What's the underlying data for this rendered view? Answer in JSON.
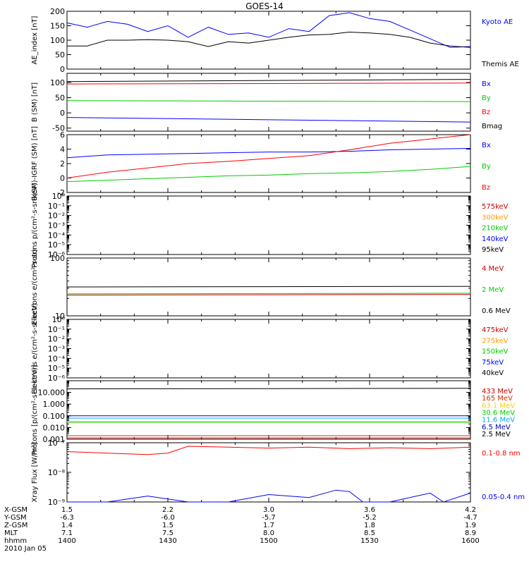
{
  "title": "GOES-14",
  "chart_data": [
    {
      "type": "line",
      "ylabel": "AE_index [nT]",
      "ylim": [
        0,
        200
      ],
      "scale": "linear",
      "ticks": [
        "0",
        "50",
        "100",
        "150",
        "200"
      ],
      "tick_values": [
        0,
        50,
        100,
        150,
        200
      ],
      "series": [
        {
          "name": "Kyoto AE",
          "color": "#0000ff",
          "x": [
            0,
            3,
            6,
            9,
            12,
            15,
            18,
            21,
            24,
            27,
            30,
            33,
            36,
            39,
            42,
            45,
            48,
            51,
            54,
            57,
            60
          ],
          "values": [
            160,
            145,
            165,
            155,
            130,
            150,
            110,
            145,
            120,
            125,
            110,
            140,
            130,
            185,
            195,
            175,
            165,
            135,
            105,
            75,
            78
          ]
        },
        {
          "name": "Themis AE",
          "color": "#000000",
          "x": [
            0,
            3,
            6,
            9,
            12,
            15,
            18,
            21,
            24,
            27,
            30,
            33,
            36,
            39,
            42,
            45,
            48,
            51,
            54,
            57,
            60
          ],
          "values": [
            80,
            80,
            100,
            100,
            102,
            100,
            95,
            78,
            95,
            90,
            100,
            110,
            118,
            120,
            128,
            125,
            120,
            110,
            90,
            80,
            75
          ]
        }
      ]
    },
    {
      "type": "line",
      "ylabel": "B (SM) [nT]",
      "ylim": [
        -60,
        130
      ],
      "scale": "linear",
      "ticks": [
        "-50",
        "0",
        "50",
        "100"
      ],
      "tick_values": [
        -50,
        0,
        50,
        100
      ],
      "series": [
        {
          "name": "Bx",
          "color": "#0000ff",
          "x": [
            0,
            60
          ],
          "values": [
            -15,
            -30
          ]
        },
        {
          "name": "By",
          "color": "#00cc00",
          "x": [
            0,
            60
          ],
          "values": [
            40,
            37
          ]
        },
        {
          "name": "Bz",
          "color": "#ff0000",
          "x": [
            0,
            60
          ],
          "values": [
            95,
            98
          ]
        },
        {
          "name": "Bmag",
          "color": "#000000",
          "x": [
            0,
            60
          ],
          "values": [
            103,
            110
          ]
        }
      ]
    },
    {
      "type": "line",
      "ylabel": "B(SM)-IGRF (SM) [nT]",
      "ylim": [
        -2,
        6
      ],
      "scale": "linear",
      "ticks": [
        "-2",
        "0",
        "2",
        "4",
        "6"
      ],
      "tick_values": [
        -2,
        0,
        2,
        4,
        6
      ],
      "series": [
        {
          "name": "Bx",
          "color": "#0000ff",
          "x": [
            0,
            6,
            12,
            18,
            24,
            30,
            36,
            42,
            48,
            54,
            60
          ],
          "values": [
            2.8,
            3.2,
            3.3,
            3.4,
            3.5,
            3.6,
            3.6,
            3.7,
            3.9,
            4.0,
            4.1
          ]
        },
        {
          "name": "By",
          "color": "#00cc00",
          "x": [
            0,
            6,
            12,
            18,
            24,
            30,
            36,
            42,
            48,
            54,
            60
          ],
          "values": [
            -0.5,
            -0.3,
            -0.1,
            0.1,
            0.3,
            0.4,
            0.6,
            0.7,
            0.9,
            1.2,
            1.6
          ]
        },
        {
          "name": "Bz",
          "color": "#ff0000",
          "x": [
            0,
            6,
            12,
            18,
            24,
            30,
            36,
            42,
            48,
            54,
            60
          ],
          "values": [
            0.0,
            0.8,
            1.4,
            2.0,
            2.3,
            2.7,
            3.1,
            3.9,
            4.8,
            5.4,
            6.0
          ]
        }
      ]
    },
    {
      "type": "line",
      "ylabel": "Protons p/(cm²-s-sr-keV)",
      "ylim": [
        -6,
        0
      ],
      "scale": "log",
      "ticks": [
        "10⁰",
        "10⁻¹",
        "10⁻²",
        "10⁻³",
        "10⁻⁴",
        "10⁻⁵",
        "10⁻⁶"
      ],
      "tick_values": [
        0,
        -1,
        -2,
        -3,
        -4,
        -5,
        -6
      ],
      "series": [
        {
          "name": "575keV",
          "color": "#cc0000",
          "x": [],
          "values": []
        },
        {
          "name": "300keV",
          "color": "#ff9900",
          "x": [],
          "values": []
        },
        {
          "name": "210keV",
          "color": "#00cc00",
          "x": [],
          "values": []
        },
        {
          "name": "140keV",
          "color": "#0000ff",
          "x": [],
          "values": []
        },
        {
          "name": "95keV",
          "color": "#000000",
          "x": [],
          "values": []
        }
      ]
    },
    {
      "type": "line",
      "ylabel": "Electrons e/(cm²-s-sr)",
      "ylim": [
        1,
        2
      ],
      "scale": "log",
      "ticks": [
        "100",
        "10"
      ],
      "tick_values": [
        2,
        1
      ],
      "series": [
        {
          "name": "4 MeV",
          "color": "#cc0000",
          "x": [
            0,
            60
          ],
          "values": [
            1.36,
            1.37
          ]
        },
        {
          "name": "2 MeV",
          "color": "#00cc00",
          "x": [
            0,
            60
          ],
          "values": [
            1.38,
            1.39
          ]
        },
        {
          "name": "0.6 MeV",
          "color": "#000000",
          "x": [
            0,
            60
          ],
          "values": [
            1.5,
            1.51
          ]
        }
      ]
    },
    {
      "type": "line",
      "ylabel": "Electrons e/(cm²-s-sr-keV)",
      "ylim": [
        -6,
        0
      ],
      "scale": "log",
      "ticks": [
        "10⁰",
        "10⁻¹",
        "10⁻²",
        "10⁻³",
        "10⁻⁴",
        "10⁻⁵",
        "10⁻⁶"
      ],
      "tick_values": [
        0,
        -1,
        -2,
        -3,
        -4,
        -5,
        -6
      ],
      "series": [
        {
          "name": "475keV",
          "color": "#cc0000",
          "x": [],
          "values": []
        },
        {
          "name": "275keV",
          "color": "#ff9900",
          "x": [],
          "values": []
        },
        {
          "name": "150keV",
          "color": "#00cc00",
          "x": [],
          "values": []
        },
        {
          "name": "75keV",
          "color": "#0000ff",
          "x": [],
          "values": []
        },
        {
          "name": "40keV",
          "color": "#000000",
          "x": [],
          "values": []
        }
      ]
    },
    {
      "type": "line",
      "ylabel": "Protons [p/(cm²-s-sr-keV)]",
      "ylim": [
        -3,
        2
      ],
      "scale": "log",
      "ticks": [
        "10.000",
        "1.000",
        "0.100",
        "0.010",
        "0.001"
      ],
      "tick_values": [
        1,
        0,
        -1,
        -2,
        -3
      ],
      "series": [
        {
          "name": "433 MeV",
          "color": "#cc0000",
          "x": [
            0,
            60
          ],
          "values": [
            -2.9,
            -2.9
          ]
        },
        {
          "name": "165 MeV",
          "color": "#cc3300",
          "x": [
            0,
            60
          ],
          "values": [
            -2.7,
            -2.7
          ]
        },
        {
          "name": "63.1 MeV",
          "color": "#ffcc00",
          "x": [
            0,
            60
          ],
          "values": [
            -1.5,
            -1.5
          ]
        },
        {
          "name": "30.6 MeV",
          "color": "#00cc00",
          "x": [
            0,
            60
          ],
          "values": [
            -1.55,
            -1.55
          ]
        },
        {
          "name": "11.6 MeV",
          "color": "#00aaff",
          "x": [
            0,
            60
          ],
          "values": [
            -1.2,
            -1.2
          ]
        },
        {
          "name": "6.5 MeV",
          "color": "#0000aa",
          "x": [
            0,
            60
          ],
          "values": [
            -1.0,
            -1.0
          ]
        },
        {
          "name": "2.5 MeV",
          "color": "#000000",
          "x": [
            0,
            60
          ],
          "values": [
            1.3,
            1.35
          ]
        }
      ]
    },
    {
      "type": "line",
      "ylabel": "Xray Flux [W/m²]",
      "ylim": [
        -9,
        -7
      ],
      "scale": "log",
      "ticks": [
        "10⁻⁷",
        "10⁻⁸",
        "10⁻⁹"
      ],
      "tick_values": [
        -7,
        -8,
        -9
      ],
      "series": [
        {
          "name": "0.1-0.8 nm",
          "color": "#ff0000",
          "x": [
            0,
            6,
            12,
            15,
            18,
            24,
            30,
            36,
            42,
            48,
            54,
            60
          ],
          "values": [
            -7.3,
            -7.35,
            -7.4,
            -7.35,
            -7.12,
            -7.15,
            -7.18,
            -7.15,
            -7.2,
            -7.17,
            -7.2,
            -7.15
          ]
        },
        {
          "name": "0.05-0.4 nm",
          "color": "#0000ff",
          "x": [
            0,
            6,
            12,
            18,
            24,
            30,
            36,
            40,
            42,
            44,
            48,
            54,
            56,
            60
          ],
          "values": [
            -9,
            -9,
            -8.8,
            -9,
            -9,
            -8.75,
            -8.85,
            -8.6,
            -8.65,
            -9,
            -9,
            -8.7,
            -9,
            -8.7
          ]
        }
      ]
    }
  ],
  "time_axis": {
    "x_values": [
      0,
      15,
      30,
      45,
      60
    ],
    "rows": [
      {
        "label": "X-GSM",
        "values": [
          "1.5",
          "2.2",
          "3.0",
          "3.6",
          "4.2"
        ]
      },
      {
        "label": "Y-GSM",
        "values": [
          "-6.3",
          "-6.0",
          "-5.7",
          "-5.2",
          "-4.7"
        ]
      },
      {
        "label": "Z-GSM",
        "values": [
          "1.4",
          "1.5",
          "1.7",
          "1.8",
          "1.9"
        ]
      },
      {
        "label": "MLT",
        "values": [
          "7.1",
          "7.5",
          "8.0",
          "8.5",
          "8.9"
        ]
      },
      {
        "label": "hhmm",
        "values": [
          "1400",
          "1430",
          "1500",
          "1530",
          "1600"
        ]
      }
    ],
    "date": "2010 Jan 05"
  }
}
